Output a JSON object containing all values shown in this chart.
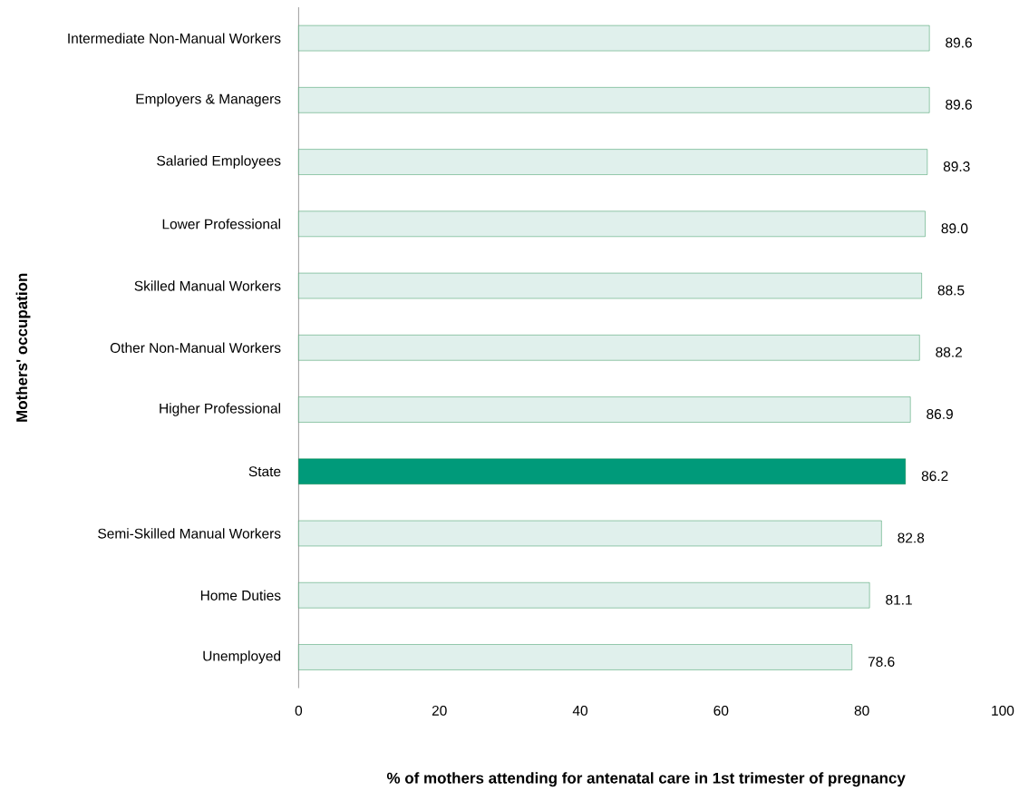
{
  "chart_data": {
    "type": "bar",
    "orientation": "horizontal",
    "categories": [
      "Intermediate Non-Manual Workers",
      "Employers & Managers",
      "Salaried Employees",
      "Lower Professional",
      "Skilled Manual Workers",
      "Other Non-Manual Workers",
      "Higher Professional",
      "State",
      "Semi-Skilled Manual Workers",
      "Home Duties",
      "Unemployed"
    ],
    "values": [
      89.6,
      89.6,
      89.3,
      89.0,
      88.5,
      88.2,
      86.9,
      86.2,
      82.8,
      81.1,
      78.6
    ],
    "colors": [
      "#e0f0ec",
      "#e0f0ec",
      "#e0f0ec",
      "#e0f0ec",
      "#e0f0ec",
      "#e0f0ec",
      "#e0f0ec",
      "#009a7a",
      "#e0f0ec",
      "#e0f0ec",
      "#e0f0ec"
    ],
    "xlim": [
      0,
      100
    ],
    "xticks": [
      0,
      20,
      40,
      60,
      80,
      100
    ],
    "xlabel": "% of mothers attending for antenatal care in 1st trimester of pregnancy",
    "ylabel": "Mothers' occupation",
    "value_labels": [
      "89.6",
      "89.6",
      "89.3",
      "89.0",
      "88.5",
      "88.2",
      "86.9",
      "86.2",
      "82.8",
      "81.1",
      "78.6"
    ],
    "grid": false
  }
}
